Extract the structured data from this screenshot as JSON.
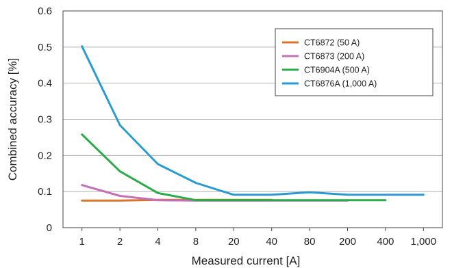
{
  "chart_data": {
    "type": "line",
    "title": "",
    "xlabel": "Measured current [A]",
    "ylabel": "Combined accuracy [%]",
    "categories": [
      "1",
      "2",
      "4",
      "8",
      "20",
      "40",
      "80",
      "200",
      "400",
      "1,000"
    ],
    "y_ticks": [
      "0",
      "0.1",
      "0.2",
      "0.3",
      "0.4",
      "0.5",
      "0.6"
    ],
    "ylim": [
      0,
      0.6
    ],
    "grid": "horizontal",
    "legend_position": "top-right",
    "series": [
      {
        "name": "CT6872 (50 A)",
        "color": "#d9742f",
        "values": [
          0.075,
          0.075,
          0.077,
          0.077,
          0.077,
          0.077,
          null,
          null,
          null,
          null
        ]
      },
      {
        "name": "CT6873 (200 A)",
        "color": "#c46fb6",
        "values": [
          0.118,
          0.088,
          0.076,
          0.075,
          0.075,
          0.075,
          0.075,
          0.075,
          null,
          null
        ]
      },
      {
        "name": "CT6904A (500 A)",
        "color": "#2aab4a",
        "values": [
          0.258,
          0.156,
          0.096,
          0.076,
          0.076,
          0.076,
          0.076,
          0.076,
          0.076,
          null
        ]
      },
      {
        "name": "CT6876A (1,000 A)",
        "color": "#2a9bd0",
        "values": [
          0.502,
          0.284,
          0.176,
          0.124,
          0.091,
          0.091,
          0.098,
          0.091,
          0.091,
          0.091
        ]
      }
    ]
  }
}
